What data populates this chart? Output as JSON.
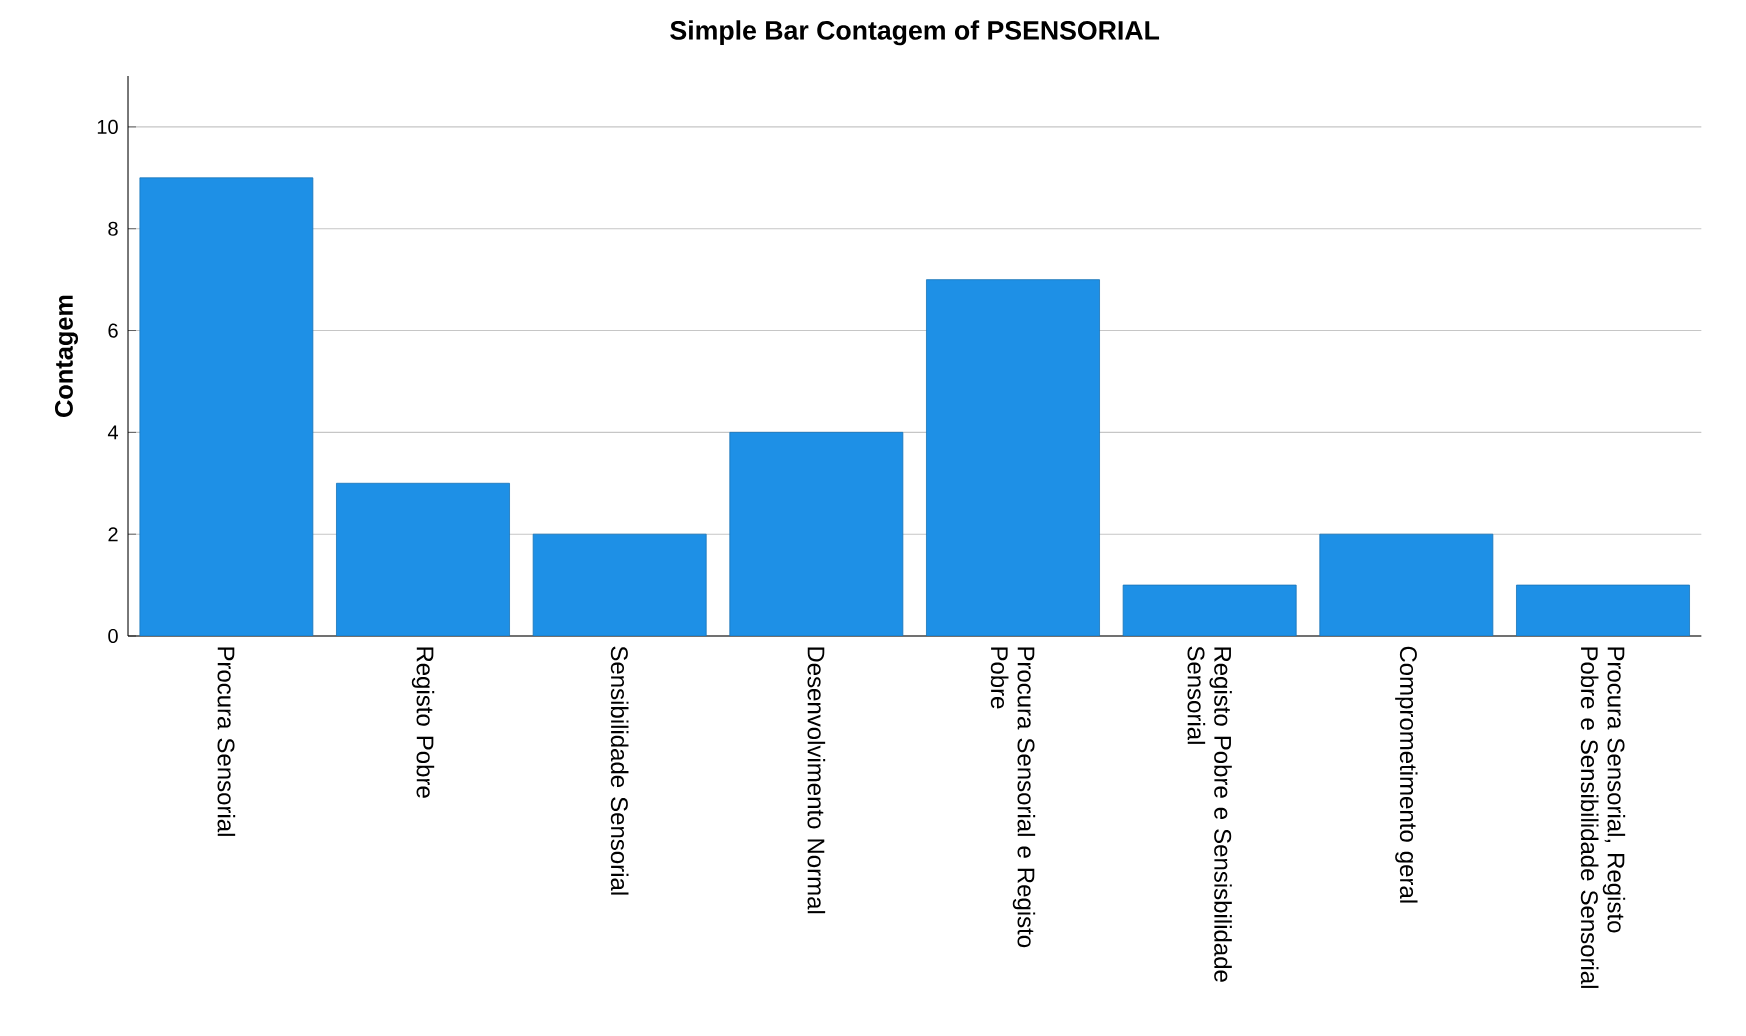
{
  "chart_data": {
    "type": "bar",
    "title": "Simple Bar Contagem of PSENSORIAL",
    "ylabel": "Contagem",
    "categories": [
      "Procura Sensorial",
      "Registo Pobre",
      "Sensibilidade Sensorial",
      "Desenvolvimento Normal",
      "Procura Sensorial e Registo Pobre",
      "Registo Pobre e Sensisbilidade Sensorial",
      "Comprometimento geral",
      "Procura Sensorial, Registo Pobre e Sensibilidade Sensorial"
    ],
    "values": [
      9,
      3,
      2,
      4,
      7,
      1,
      2,
      1
    ],
    "color": "#1e90e6",
    "ylim": [
      0,
      11
    ],
    "yticks": [
      0,
      2,
      4,
      6,
      8,
      10
    ],
    "grid": "y"
  }
}
